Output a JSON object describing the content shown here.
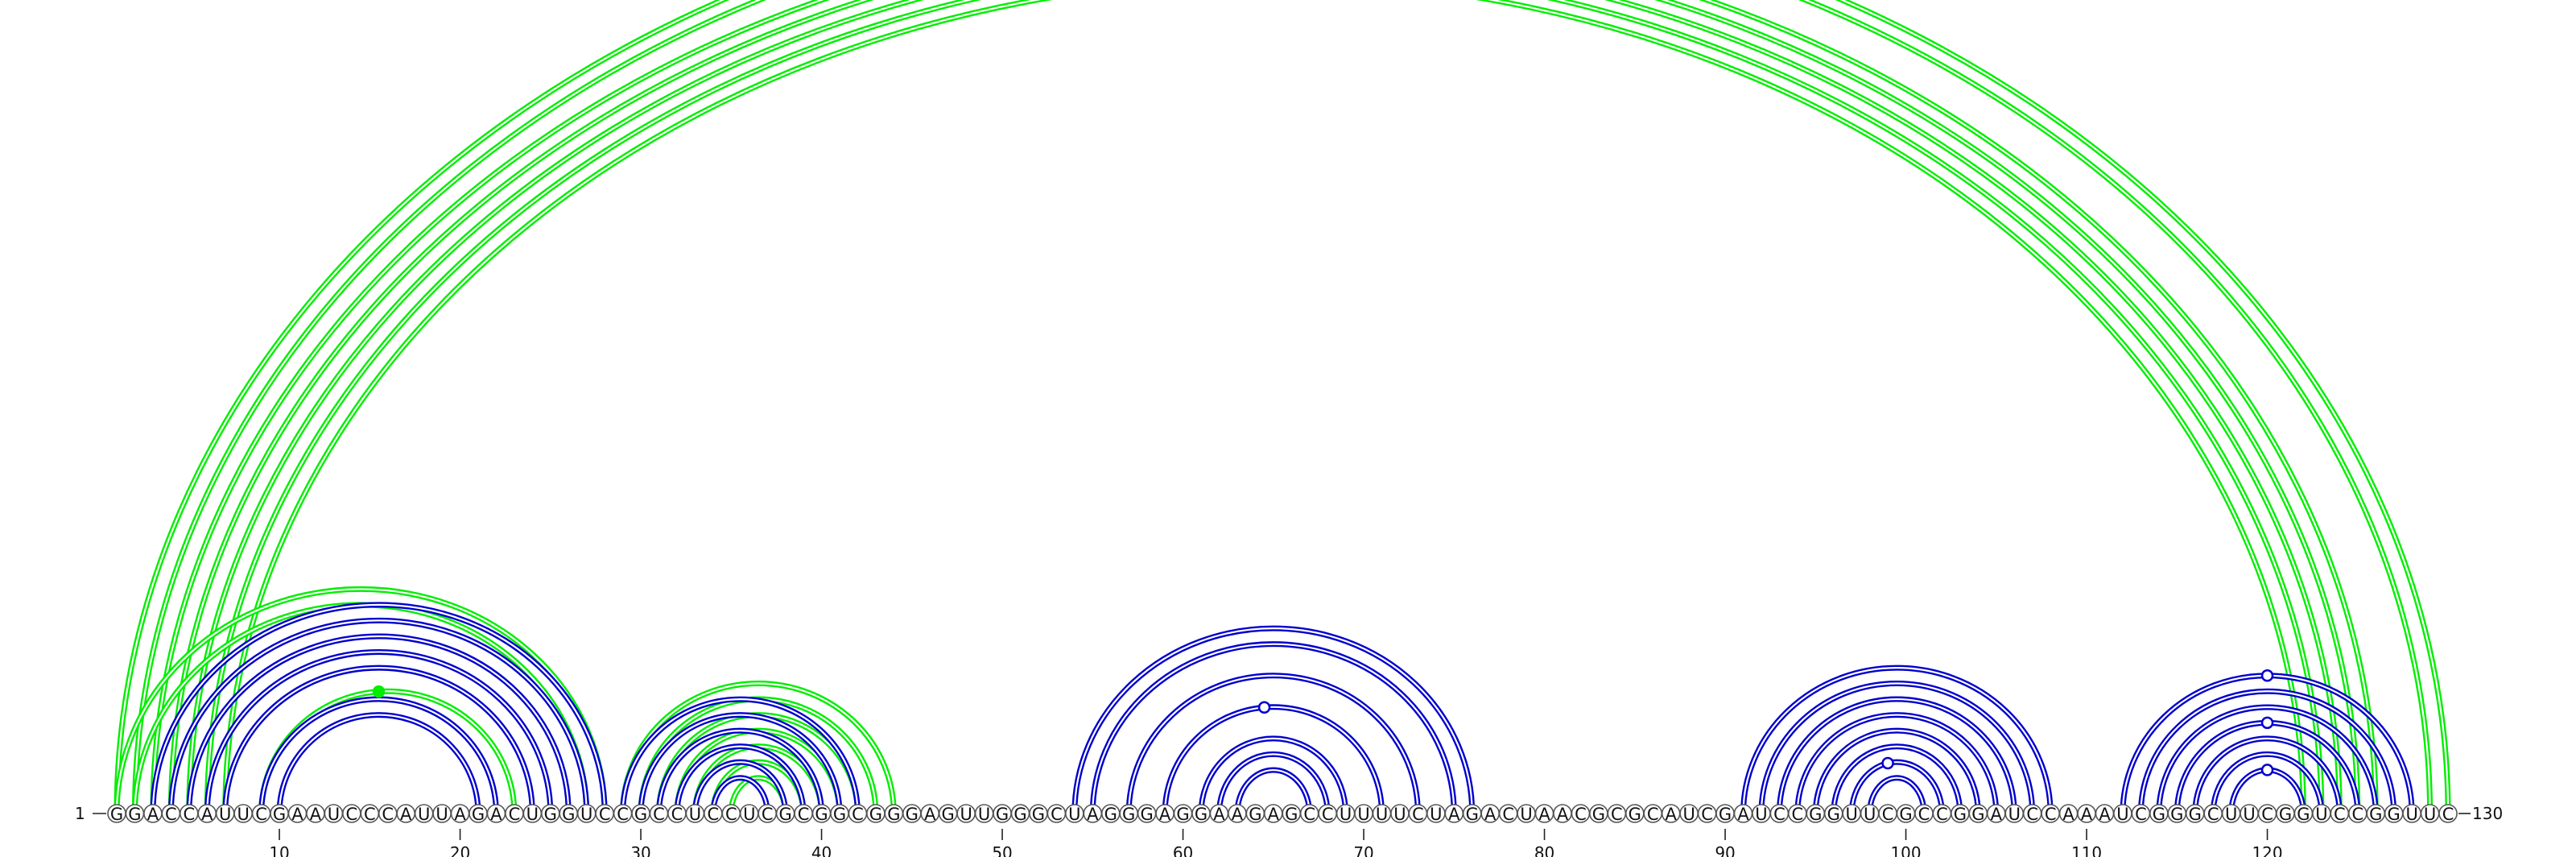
{
  "chart_data": {
    "type": "arc-diagram",
    "sequence": "GGACCAUUCGAAUCCCAUUAGACUGGUCCGCCUCCUCGCGGCGGGAGUUGGGCUAGGGAGGAAGAGCCUUUUCUAGACUAACGCGCAUCGAUCCGGUUCGCCGGAUCCAAAUCGGGCUUCGGUCCGGUUC",
    "start_label": "1",
    "end_label": "130",
    "ticks": [
      10,
      20,
      30,
      40,
      50,
      60,
      70,
      80,
      90,
      100,
      110,
      120
    ],
    "colors": {
      "structure_a": "#0000cc",
      "structure_b": "#00ee00"
    },
    "arcs_blue": [
      [
        3,
        28
      ],
      [
        4,
        27
      ],
      [
        5,
        26
      ],
      [
        6,
        25
      ],
      [
        7,
        24
      ],
      [
        9,
        22
      ],
      [
        10,
        21
      ],
      [
        29,
        42
      ],
      [
        30,
        41
      ],
      [
        31,
        40
      ],
      [
        32,
        39
      ],
      [
        33,
        38
      ],
      [
        34,
        37
      ],
      [
        54,
        76
      ],
      [
        55,
        75
      ],
      [
        57,
        73
      ],
      [
        59,
        71
      ],
      [
        61,
        69
      ],
      [
        62,
        68
      ],
      [
        63,
        67
      ],
      [
        91,
        108
      ],
      [
        92,
        107
      ],
      [
        93,
        106
      ],
      [
        94,
        105
      ],
      [
        95,
        104
      ],
      [
        96,
        103
      ],
      [
        97,
        102
      ],
      [
        98,
        101
      ],
      [
        112,
        128
      ],
      [
        113,
        127
      ],
      [
        114,
        126
      ],
      [
        115,
        125
      ],
      [
        116,
        124
      ],
      [
        117,
        123
      ],
      [
        118,
        122
      ]
    ],
    "arcs_green": [
      [
        1,
        130
      ],
      [
        2,
        129
      ],
      [
        3,
        126
      ],
      [
        4,
        125
      ],
      [
        5,
        124
      ],
      [
        6,
        123
      ],
      [
        7,
        122
      ],
      [
        1,
        28
      ],
      [
        2,
        27
      ],
      [
        9,
        23
      ],
      [
        29,
        44
      ],
      [
        30,
        43
      ],
      [
        31,
        42
      ],
      [
        32,
        41
      ],
      [
        33,
        40
      ],
      [
        34,
        39
      ],
      [
        35,
        38
      ]
    ],
    "markers": [
      {
        "color": "green",
        "filled": false,
        "x": 65.5,
        "arc": [
          1,
          130
        ]
      },
      {
        "color": "green",
        "filled": true,
        "x": 15.5,
        "arc": [
          9,
          23
        ]
      },
      {
        "color": "blue",
        "filled": false,
        "x": 64.5,
        "arc": [
          59,
          71
        ]
      },
      {
        "color": "blue",
        "filled": false,
        "x": 99.0,
        "arc": [
          97,
          102
        ]
      },
      {
        "color": "blue",
        "filled": false,
        "x": 120.0,
        "arc": [
          112,
          128
        ]
      },
      {
        "color": "blue",
        "filled": false,
        "x": 120.0,
        "arc": [
          115,
          125
        ]
      },
      {
        "color": "blue",
        "filled": false,
        "x": 120.0,
        "arc": [
          118,
          122
        ]
      }
    ]
  }
}
